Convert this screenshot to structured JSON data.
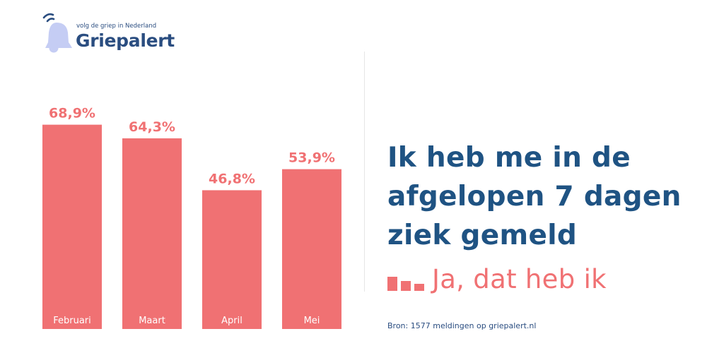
{
  "logo": {
    "tagline": "volg de griep in Nederland",
    "brand": "Griepalert"
  },
  "chart_data": {
    "type": "bar",
    "categories": [
      "Februari",
      "Maart",
      "April",
      "Mei"
    ],
    "values": [
      68.9,
      64.3,
      46.8,
      53.9
    ],
    "value_labels": [
      "68,9%",
      "64,3%",
      "46,8%",
      "53,9%"
    ],
    "ylim": [
      0,
      100
    ],
    "grid": false,
    "bar_color": "#f07173"
  },
  "headline": "Ik heb me in de afgelopen 7 dagen ziek gemeld",
  "legend": {
    "label": "Ja, dat heb ik"
  },
  "source": "Bron: 1577 meldingen op griepalert.nl",
  "colors": {
    "accent": "#f07173",
    "navy": "#1f5383",
    "logo_light": "#c5cdf4"
  }
}
